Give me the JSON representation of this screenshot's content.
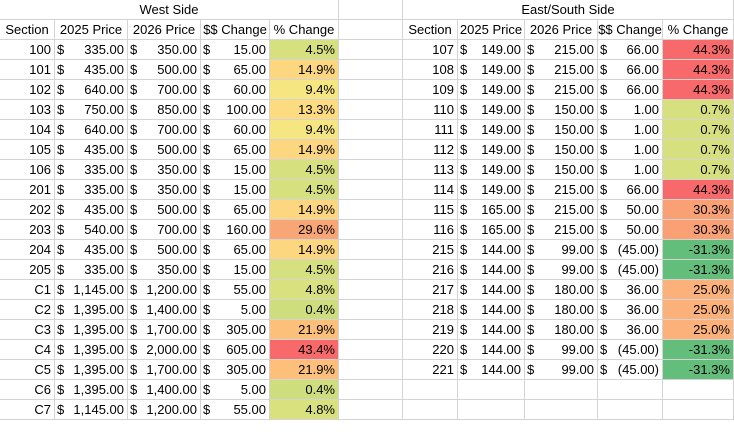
{
  "titles": {
    "west": "West Side",
    "east": "East/South Side"
  },
  "headers": [
    "Section",
    "2025 Price",
    "2026 Price",
    "$$ Change",
    "% Change"
  ],
  "colors": {
    "grid": "#d4d4d4"
  },
  "west_rows": [
    {
      "section": "100",
      "p25": "335.00",
      "p26": "350.00",
      "chg": "15.00",
      "pct": "4.5%",
      "color": "#d7e07e"
    },
    {
      "section": "101",
      "p25": "435.00",
      "p26": "500.00",
      "chg": "65.00",
      "pct": "14.9%",
      "color": "#fcd780"
    },
    {
      "section": "102",
      "p25": "640.00",
      "p26": "700.00",
      "chg": "60.00",
      "pct": "9.4%",
      "color": "#f5e682"
    },
    {
      "section": "103",
      "p25": "750.00",
      "p26": "850.00",
      "chg": "100.00",
      "pct": "13.3%",
      "color": "#fddc81"
    },
    {
      "section": "104",
      "p25": "640.00",
      "p26": "700.00",
      "chg": "60.00",
      "pct": "9.4%",
      "color": "#f5e682"
    },
    {
      "section": "105",
      "p25": "435.00",
      "p26": "500.00",
      "chg": "65.00",
      "pct": "14.9%",
      "color": "#fcd780"
    },
    {
      "section": "106",
      "p25": "335.00",
      "p26": "350.00",
      "chg": "15.00",
      "pct": "4.5%",
      "color": "#d7e07e"
    },
    {
      "section": "201",
      "p25": "335.00",
      "p26": "350.00",
      "chg": "15.00",
      "pct": "4.5%",
      "color": "#d7e07e"
    },
    {
      "section": "202",
      "p25": "435.00",
      "p26": "500.00",
      "chg": "65.00",
      "pct": "14.9%",
      "color": "#fcd780"
    },
    {
      "section": "203",
      "p25": "540.00",
      "p26": "700.00",
      "chg": "160.00",
      "pct": "29.6%",
      "color": "#f9a676"
    },
    {
      "section": "204",
      "p25": "435.00",
      "p26": "500.00",
      "chg": "65.00",
      "pct": "14.9%",
      "color": "#fcd780"
    },
    {
      "section": "205",
      "p25": "335.00",
      "p26": "350.00",
      "chg": "15.00",
      "pct": "4.5%",
      "color": "#d7e07e"
    },
    {
      "section": "C1",
      "p25": "1,145.00",
      "p26": "1,200.00",
      "chg": "55.00",
      "pct": "4.8%",
      "color": "#d8e17e"
    },
    {
      "section": "C2",
      "p25": "1,395.00",
      "p26": "1,400.00",
      "chg": "5.00",
      "pct": "0.4%",
      "color": "#cedd7e"
    },
    {
      "section": "C3",
      "p25": "1,395.00",
      "p26": "1,700.00",
      "chg": "305.00",
      "pct": "21.9%",
      "color": "#fcc07b"
    },
    {
      "section": "C4",
      "p25": "1,395.00",
      "p26": "2,000.00",
      "chg": "605.00",
      "pct": "43.4%",
      "color": "#f8696b"
    },
    {
      "section": "C5",
      "p25": "1,395.00",
      "p26": "1,700.00",
      "chg": "305.00",
      "pct": "21.9%",
      "color": "#fcc07b"
    },
    {
      "section": "C6",
      "p25": "1,395.00",
      "p26": "1,400.00",
      "chg": "5.00",
      "pct": "0.4%",
      "color": "#cedd7e"
    },
    {
      "section": "C7",
      "p25": "1,145.00",
      "p26": "1,200.00",
      "chg": "55.00",
      "pct": "4.8%",
      "color": "#d8e17e"
    }
  ],
  "east_rows": [
    {
      "section": "107",
      "p25": "149.00",
      "p26": "215.00",
      "chg": "66.00",
      "pct": "44.3%",
      "color": "#f8696b"
    },
    {
      "section": "108",
      "p25": "149.00",
      "p26": "215.00",
      "chg": "66.00",
      "pct": "44.3%",
      "color": "#f8696b"
    },
    {
      "section": "109",
      "p25": "149.00",
      "p26": "215.00",
      "chg": "66.00",
      "pct": "44.3%",
      "color": "#f8696b"
    },
    {
      "section": "110",
      "p25": "149.00",
      "p26": "150.00",
      "chg": "1.00",
      "pct": "0.7%",
      "color": "#d6e07f"
    },
    {
      "section": "111",
      "p25": "149.00",
      "p26": "150.00",
      "chg": "1.00",
      "pct": "0.7%",
      "color": "#d6e07f"
    },
    {
      "section": "112",
      "p25": "149.00",
      "p26": "150.00",
      "chg": "1.00",
      "pct": "0.7%",
      "color": "#d6e07f"
    },
    {
      "section": "113",
      "p25": "149.00",
      "p26": "150.00",
      "chg": "1.00",
      "pct": "0.7%",
      "color": "#d6e07f"
    },
    {
      "section": "114",
      "p25": "149.00",
      "p26": "215.00",
      "chg": "66.00",
      "pct": "44.3%",
      "color": "#f8696b"
    },
    {
      "section": "115",
      "p25": "165.00",
      "p26": "215.00",
      "chg": "50.00",
      "pct": "30.3%",
      "color": "#f9a075"
    },
    {
      "section": "116",
      "p25": "165.00",
      "p26": "215.00",
      "chg": "50.00",
      "pct": "30.3%",
      "color": "#f9a075"
    },
    {
      "section": "215",
      "p25": "144.00",
      "p26": "99.00",
      "chg": "(45.00)",
      "pct": "-31.3%",
      "color": "#63be7b"
    },
    {
      "section": "216",
      "p25": "144.00",
      "p26": "99.00",
      "chg": "(45.00)",
      "pct": "-31.3%",
      "color": "#63be7b"
    },
    {
      "section": "217",
      "p25": "144.00",
      "p26": "180.00",
      "chg": "36.00",
      "pct": "25.0%",
      "color": "#fbb179"
    },
    {
      "section": "218",
      "p25": "144.00",
      "p26": "180.00",
      "chg": "36.00",
      "pct": "25.0%",
      "color": "#fbb179"
    },
    {
      "section": "219",
      "p25": "144.00",
      "p26": "180.00",
      "chg": "36.00",
      "pct": "25.0%",
      "color": "#fbb179"
    },
    {
      "section": "220",
      "p25": "144.00",
      "p26": "99.00",
      "chg": "(45.00)",
      "pct": "-31.3%",
      "color": "#63be7b"
    },
    {
      "section": "221",
      "p25": "144.00",
      "p26": "99.00",
      "chg": "(45.00)",
      "pct": "-31.3%",
      "color": "#63be7b"
    }
  ]
}
